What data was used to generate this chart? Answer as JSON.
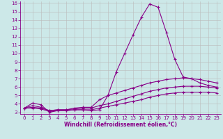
{
  "xlabel": "Windchill (Refroidissement éolien,°C)",
  "bg_color": "#cce8e8",
  "line_color": "#880088",
  "grid_color": "#bbbbbb",
  "ylim": [
    3,
    16
  ],
  "xlim": [
    -0.5,
    23.5
  ],
  "yticks": [
    3,
    4,
    5,
    6,
    7,
    8,
    9,
    10,
    11,
    12,
    13,
    14,
    15,
    16
  ],
  "xticks": [
    0,
    1,
    2,
    3,
    4,
    5,
    6,
    7,
    8,
    9,
    10,
    11,
    12,
    13,
    14,
    15,
    16,
    17,
    18,
    19,
    20,
    21,
    22,
    23
  ],
  "line1_y": [
    3.5,
    4.1,
    3.9,
    3.0,
    3.2,
    3.2,
    3.3,
    3.3,
    3.2,
    3.3,
    5.0,
    7.8,
    10.0,
    12.2,
    14.3,
    15.9,
    15.5,
    12.5,
    9.3,
    7.2,
    7.0,
    6.5,
    6.2,
    6.0
  ],
  "line2_y": [
    3.5,
    3.8,
    3.6,
    3.2,
    3.3,
    3.3,
    3.5,
    3.6,
    3.6,
    4.5,
    5.0,
    5.3,
    5.6,
    5.9,
    6.2,
    6.5,
    6.7,
    6.9,
    7.0,
    7.1,
    7.0,
    6.9,
    6.7,
    6.5
  ],
  "line3_y": [
    3.5,
    3.6,
    3.5,
    3.2,
    3.3,
    3.3,
    3.4,
    3.5,
    3.5,
    3.8,
    4.0,
    4.3,
    4.6,
    4.9,
    5.2,
    5.5,
    5.7,
    5.9,
    6.0,
    6.1,
    6.1,
    6.1,
    6.0,
    5.9
  ],
  "line4_y": [
    3.5,
    3.5,
    3.4,
    3.1,
    3.2,
    3.2,
    3.3,
    3.3,
    3.3,
    3.5,
    3.7,
    3.9,
    4.1,
    4.3,
    4.5,
    4.8,
    5.0,
    5.2,
    5.3,
    5.4,
    5.4,
    5.4,
    5.4,
    5.3
  ]
}
